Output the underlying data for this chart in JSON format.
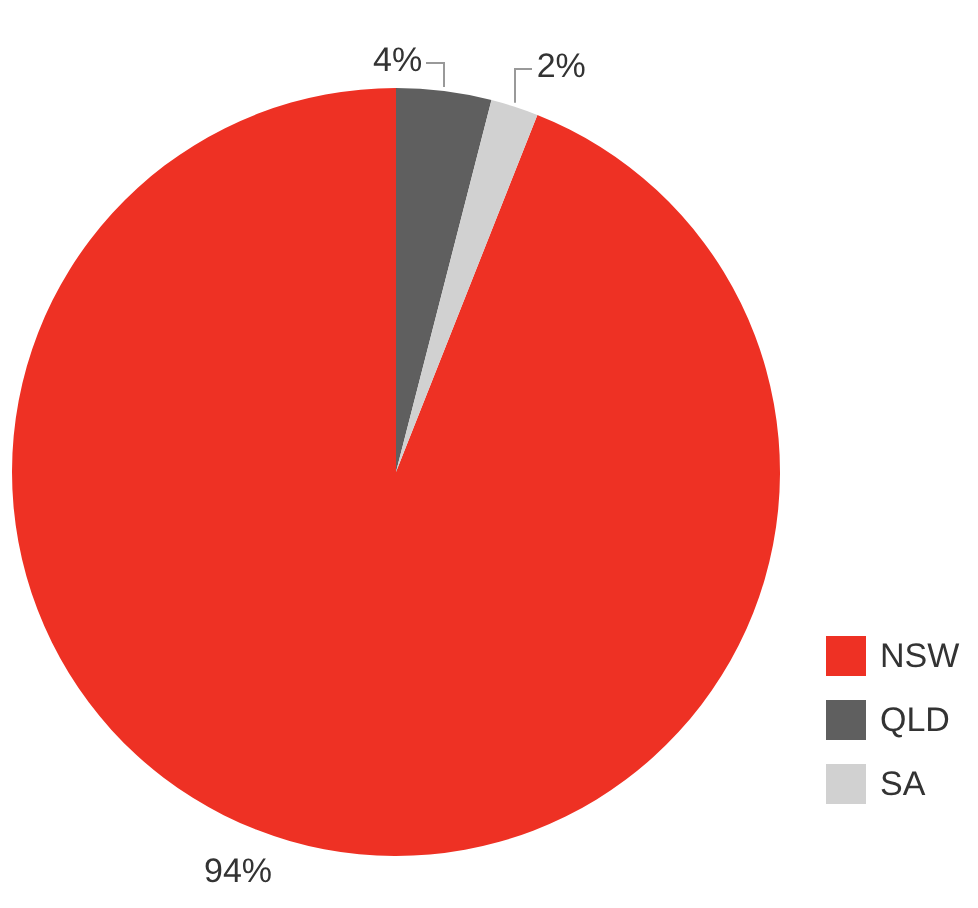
{
  "chart_data": {
    "type": "pie",
    "categories": [
      "NSW",
      "QLD",
      "SA"
    ],
    "values": [
      94,
      4,
      2
    ],
    "colors": [
      "#ee3124",
      "#5f5f5f",
      "#d1d1d1"
    ],
    "value_labels": [
      "94%",
      "4%",
      "2%"
    ],
    "legend": "bottom right"
  }
}
